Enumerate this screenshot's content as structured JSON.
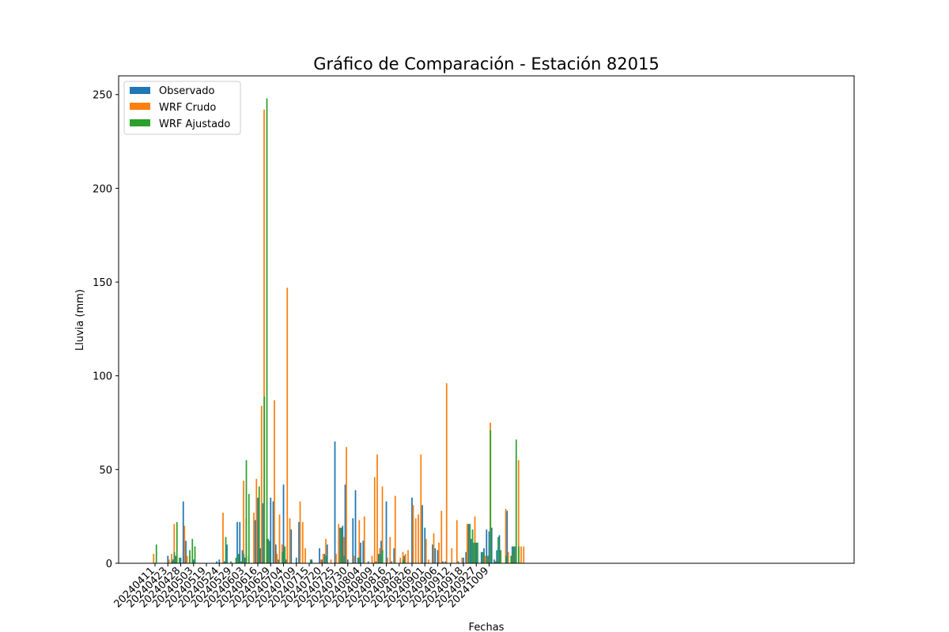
{
  "chart_data": {
    "type": "bar",
    "title": "Gráfico de Comparación - Estación 82015",
    "xlabel": "Fechas",
    "ylabel": "Lluvia (mm)",
    "ylim": [
      0,
      260
    ],
    "yticks": [
      0,
      50,
      100,
      150,
      200,
      250
    ],
    "xtick_labels": [
      "20240411",
      "20240423",
      "20240428",
      "20240503",
      "20240519",
      "20240524",
      "20240529",
      "20240603",
      "20240616",
      "20240629",
      "20240704",
      "20240709",
      "20240715",
      "20240720",
      "20240725",
      "20240730",
      "20240804",
      "20240809",
      "20240816",
      "20240821",
      "20240826",
      "20240901",
      "20240906",
      "20240912",
      "20240918",
      "20240927",
      "20241009"
    ],
    "categories_per_label": 5,
    "legend": {
      "placement": "top-left",
      "entries": [
        "Observado",
        "WRF Crudo",
        "WRF Ajustado"
      ]
    },
    "colors": {
      "observado": "#1f77b4",
      "wrf_crudo": "#ff7f0e",
      "wrf_ajustado": "#2ca02c"
    },
    "series": [
      {
        "name": "Observado",
        "values": [
          0,
          0,
          0,
          0,
          0,
          4,
          0,
          2,
          4,
          0,
          3,
          33,
          12,
          0,
          0,
          2,
          0,
          0,
          0,
          0,
          0,
          0,
          0,
          0,
          1,
          2,
          0,
          1,
          10,
          0,
          0,
          0,
          22,
          22,
          7,
          3,
          0,
          0,
          0,
          23,
          35,
          8,
          32,
          0,
          13,
          35,
          33,
          10,
          2,
          0,
          42,
          2,
          0,
          18,
          0,
          3,
          22,
          0,
          0,
          0,
          0,
          2,
          0,
          0,
          8,
          2,
          5,
          10,
          0,
          0,
          65,
          0,
          19,
          20,
          42,
          2,
          0,
          24,
          39,
          3,
          11,
          12,
          0,
          1,
          0,
          0,
          1,
          5,
          12,
          0,
          33,
          0,
          1,
          8,
          0,
          0,
          0,
          4,
          0,
          0,
          35,
          0,
          0,
          0,
          31,
          19,
          0,
          0,
          10,
          8,
          7,
          0,
          1,
          1,
          0,
          0,
          0,
          0,
          1,
          0,
          3,
          6,
          21,
          13,
          11,
          11,
          0,
          6,
          8,
          18,
          17,
          19,
          2,
          7,
          15,
          0,
          0,
          28,
          0,
          9,
          9,
          0,
          0,
          0,
          0
        ],
        "interpretation": "estimated"
      },
      {
        "name": "WRF Crudo",
        "values": [
          5,
          0,
          0,
          0,
          0,
          0,
          2,
          5,
          21,
          3,
          0,
          0,
          20,
          4,
          4,
          0,
          0,
          0,
          0,
          0,
          0,
          0,
          0,
          0,
          0,
          0,
          0,
          27,
          0,
          0,
          0,
          0,
          0,
          2,
          0,
          44,
          24,
          4,
          0,
          27,
          45,
          0,
          84,
          242,
          13,
          2,
          0,
          87,
          5,
          26,
          10,
          0,
          147,
          24,
          0,
          0,
          0,
          33,
          22,
          8,
          0,
          0,
          0,
          0,
          0,
          2,
          5,
          13,
          0,
          2,
          0,
          5,
          21,
          5,
          14,
          62,
          0,
          0,
          4,
          0,
          23,
          0,
          25,
          0,
          0,
          4,
          46,
          58,
          8,
          41,
          0,
          3,
          14,
          0,
          36,
          0,
          3,
          6,
          5,
          7,
          0,
          31,
          24,
          26,
          58,
          0,
          13,
          2,
          0,
          16,
          0,
          11,
          28,
          0,
          96,
          0,
          8,
          0,
          23,
          0,
          3,
          0,
          21,
          17,
          0,
          25,
          0,
          0,
          4,
          4,
          3,
          75,
          0,
          0,
          1,
          5,
          0,
          29,
          6,
          0,
          5,
          9,
          55,
          9,
          9
        ],
        "interpretation": "estimated"
      },
      {
        "name": "WRF Ajustado",
        "values": [
          10,
          0,
          0,
          0,
          0,
          0,
          1,
          6,
          22,
          3,
          0,
          0,
          0,
          7,
          13,
          9,
          0,
          0,
          0,
          0,
          0,
          0,
          0,
          0,
          0,
          0,
          0,
          14,
          0,
          1,
          0,
          3,
          5,
          1,
          5,
          55,
          37,
          0,
          0,
          0,
          41,
          0,
          89,
          248,
          12,
          0,
          0,
          0,
          0,
          6,
          9,
          0,
          0,
          0,
          0,
          0,
          0,
          0,
          0,
          0,
          2,
          0,
          0,
          0,
          0,
          0,
          4,
          0,
          0,
          0,
          0,
          0,
          19,
          4,
          0,
          0,
          0,
          0,
          0,
          3,
          0,
          0,
          0,
          0,
          0,
          0,
          0,
          5,
          7,
          0,
          0,
          0,
          0,
          0,
          0,
          0,
          2,
          0,
          0,
          0,
          0,
          0,
          0,
          0,
          0,
          0,
          0,
          0,
          0,
          0,
          0,
          0,
          0,
          0,
          0,
          0,
          0,
          0,
          0,
          0,
          0,
          0,
          21,
          18,
          11,
          11,
          0,
          6,
          0,
          4,
          71,
          0,
          1,
          14,
          7,
          0,
          4,
          0,
          4,
          9,
          66,
          9,
          0,
          0,
          0
        ],
        "interpretation": "estimated"
      }
    ]
  }
}
